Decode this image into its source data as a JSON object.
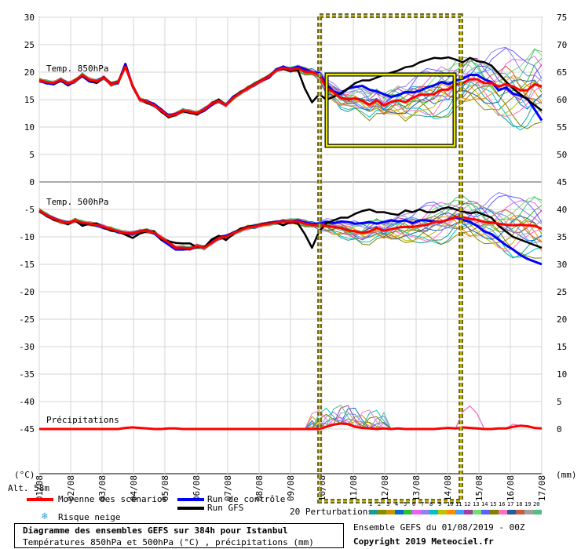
{
  "chart_data": {
    "type": "line",
    "title": "Diagramme des ensembles GEFS sur 384h pour Istanbul",
    "subtitle": "Températures 850hPa et 500hPa (°C) , précipitations (mm)",
    "x_ticks": [
      "01/08",
      "02/08",
      "03/08",
      "04/08",
      "05/08",
      "06/08",
      "07/08",
      "08/08",
      "09/08",
      "10/08",
      "11/08",
      "12/08",
      "13/08",
      "14/08",
      "15/08",
      "16/08",
      "17/08"
    ],
    "left_axis": {
      "unit": "(°C)",
      "ticks": [
        30,
        25,
        20,
        15,
        10,
        5,
        0,
        -5,
        -10,
        -15,
        -20,
        -25,
        -30,
        -35,
        -40,
        -45
      ],
      "ylim": [
        -50,
        31
      ]
    },
    "right_axis": {
      "unit": "(mm)",
      "ticks": [
        75,
        70,
        65,
        60,
        55,
        50,
        45,
        40,
        35,
        30,
        25,
        20,
        15,
        10,
        5,
        0
      ]
    },
    "panels": [
      {
        "label": "Temp. 850hPa",
        "mean_color": "#ff0000"
      },
      {
        "label": "Temp. 500hPa",
        "mean_color": "#ff0000"
      },
      {
        "label": "Précipitations",
        "mean_color": "#ff0000"
      }
    ],
    "series": [
      {
        "name": "Moyenne des scénarios",
        "panel": "t850",
        "color": "#ff0000",
        "values": [
          18.5,
          18.2,
          18.0,
          18.6,
          17.9,
          18.4,
          19.5,
          18.6,
          18.3,
          19.0,
          17.8,
          18.2,
          21.0,
          17.5,
          15.0,
          14.6,
          14.0,
          13.0,
          12.0,
          12.3,
          13.0,
          12.8,
          12.5,
          13.2,
          14.2,
          14.8,
          14.0,
          15.3,
          16.2,
          17.0,
          17.8,
          18.5,
          19.2,
          20.3,
          20.8,
          20.4,
          20.7,
          20.1,
          20.0,
          19.5,
          17.2,
          16.3,
          15.3,
          15.0,
          15.2,
          14.8,
          14.1,
          14.9,
          13.9,
          14.6,
          14.9,
          14.5,
          15.3,
          15.9,
          15.9,
          16.0,
          16.8,
          16.8,
          17.7,
          18.0,
          18.7,
          18.7,
          18.0,
          18.0,
          17.4,
          17.8,
          17.4,
          16.7,
          16.7,
          17.8,
          17.4
        ]
      },
      {
        "name": "Run de contrôle",
        "panel": "t850",
        "color": "#0000ff",
        "values": [
          18.5,
          18.0,
          17.8,
          18.5,
          17.6,
          18.4,
          19.3,
          18.3,
          18.1,
          19.0,
          17.8,
          18.1,
          21.5,
          17.4,
          15.0,
          14.7,
          14.2,
          13.2,
          12.1,
          12.4,
          13.0,
          12.6,
          12.4,
          13.0,
          14.0,
          14.8,
          14.0,
          15.5,
          16.3,
          17.0,
          17.8,
          18.5,
          19.0,
          20.5,
          21.0,
          20.5,
          21.0,
          20.5,
          20.0,
          19.8,
          17.8,
          16.5,
          16.0,
          17.0,
          17.3,
          17.5,
          16.8,
          16.5,
          16.0,
          15.5,
          15.8,
          16.4,
          16.3,
          16.6,
          17.2,
          17.6,
          18.2,
          17.8,
          18.5,
          18.8,
          19.5,
          19.5,
          18.7,
          18.2,
          16.7,
          17.2,
          16.1,
          15.7,
          15.2,
          13.2,
          11.2
        ]
      },
      {
        "name": "Run GFS",
        "panel": "t850",
        "color": "#000000",
        "values": [
          18.5,
          18.2,
          17.9,
          18.5,
          17.8,
          18.5,
          19.4,
          18.5,
          18.0,
          19.1,
          17.9,
          18.3,
          21.2,
          17.6,
          15.1,
          14.4,
          14.0,
          12.8,
          11.8,
          12.2,
          12.9,
          12.6,
          12.3,
          13.2,
          14.3,
          15.0,
          14.0,
          15.4,
          16.3,
          17.1,
          17.9,
          18.6,
          19.3,
          20.3,
          20.6,
          20.2,
          20.5,
          17.0,
          14.5,
          16.0,
          15.0,
          15.5,
          16.2,
          17.0,
          18.0,
          18.5,
          18.5,
          19.0,
          19.5,
          19.9,
          20.3,
          20.9,
          21.1,
          21.8,
          22.2,
          22.6,
          22.5,
          22.7,
          22.3,
          21.8,
          22.6,
          22.0,
          21.8,
          21.2,
          19.8,
          18.3,
          17.0,
          16.0,
          15.0,
          14.0,
          13.0
        ]
      },
      {
        "name": "Moyenne des scénarios",
        "panel": "t500",
        "color": "#ff0000",
        "values": [
          -5.2,
          -6.0,
          -6.7,
          -7.2,
          -7.5,
          -7.0,
          -7.4,
          -7.6,
          -7.8,
          -8.2,
          -8.6,
          -9.0,
          -9.3,
          -9.4,
          -9.0,
          -8.9,
          -9.2,
          -10.2,
          -11.0,
          -12.0,
          -12.0,
          -12.1,
          -11.7,
          -12.0,
          -11.1,
          -10.2,
          -10.0,
          -9.4,
          -8.8,
          -8.3,
          -8.1,
          -7.8,
          -7.6,
          -7.4,
          -7.2,
          -7.2,
          -7.2,
          -7.6,
          -7.8,
          -7.9,
          -8.0,
          -8.2,
          -8.4,
          -8.8,
          -9.0,
          -9.3,
          -9.0,
          -8.4,
          -8.9,
          -8.6,
          -8.3,
          -8.2,
          -8.2,
          -8.0,
          -7.8,
          -7.3,
          -7.2,
          -6.9,
          -6.4,
          -6.4,
          -6.7,
          -6.9,
          -7.3,
          -7.4,
          -7.6,
          -7.8,
          -7.9,
          -7.8,
          -7.9,
          -8.0,
          -8.5
        ]
      },
      {
        "name": "Run de contrôle",
        "panel": "t500",
        "color": "#0000ff",
        "values": [
          -5.3,
          -6.0,
          -6.6,
          -7.2,
          -7.5,
          -7.0,
          -7.5,
          -7.7,
          -7.9,
          -8.4,
          -8.7,
          -9.1,
          -9.4,
          -9.5,
          -9.0,
          -8.8,
          -9.3,
          -10.5,
          -11.4,
          -12.3,
          -12.3,
          -12.2,
          -11.8,
          -11.9,
          -11.0,
          -10.0,
          -9.8,
          -9.3,
          -8.7,
          -8.2,
          -8.0,
          -7.7,
          -7.5,
          -7.3,
          -7.1,
          -7.2,
          -7.0,
          -7.4,
          -7.6,
          -7.6,
          -7.3,
          -7.5,
          -7.2,
          -7.3,
          -7.6,
          -7.5,
          -7.3,
          -7.6,
          -7.3,
          -7.0,
          -7.2,
          -7.0,
          -7.5,
          -7.0,
          -7.0,
          -7.2,
          -7.3,
          -6.8,
          -6.5,
          -6.9,
          -7.3,
          -8.0,
          -9.0,
          -9.5,
          -10.5,
          -11.5,
          -12.3,
          -13.3,
          -14.0,
          -14.5,
          -15.0
        ]
      },
      {
        "name": "Run GFS",
        "panel": "t500",
        "color": "#000000",
        "values": [
          -5.3,
          -6.1,
          -6.9,
          -7.2,
          -7.7,
          -7.0,
          -8.0,
          -7.6,
          -7.6,
          -8.3,
          -8.9,
          -9.0,
          -9.6,
          -10.2,
          -9.4,
          -9.0,
          -9.0,
          -10.5,
          -10.8,
          -11.1,
          -11.2,
          -11.2,
          -11.9,
          -11.9,
          -10.5,
          -9.8,
          -10.6,
          -9.5,
          -8.5,
          -8.2,
          -8.0,
          -7.7,
          -7.5,
          -7.4,
          -7.9,
          -7.3,
          -7.5,
          -9.5,
          -12.0,
          -9.0,
          -7.5,
          -7.0,
          -6.5,
          -6.5,
          -5.8,
          -5.3,
          -5.0,
          -5.5,
          -5.5,
          -5.8,
          -6.0,
          -5.2,
          -5.5,
          -5.0,
          -5.5,
          -5.5,
          -4.9,
          -4.6,
          -5.0,
          -5.4,
          -5.7,
          -5.5,
          -6.0,
          -6.5,
          -8.0,
          -9.0,
          -10.0,
          -10.5,
          -11.0,
          -11.5,
          -12.0
        ]
      },
      {
        "name": "Moyenne des scénarios",
        "panel": "precip",
        "unit": "mm",
        "color": "#ff0000",
        "values": [
          0,
          0,
          0,
          0,
          0,
          0,
          0,
          0,
          0,
          0,
          0,
          0,
          0.2,
          0.3,
          0.2,
          0.1,
          0,
          0,
          0.1,
          0.1,
          0,
          0,
          0,
          0,
          0,
          0,
          0,
          0,
          0,
          0,
          0,
          0,
          0,
          0,
          0,
          0,
          0,
          0,
          0,
          0,
          0.4,
          0.8,
          1.0,
          0.9,
          0.4,
          0.2,
          0.1,
          0,
          0.1,
          0,
          0.1,
          0,
          0,
          0,
          0,
          0,
          0.1,
          0.2,
          0.1,
          0.3,
          0.2,
          0.1,
          0,
          0,
          0.1,
          0.1,
          0.4,
          0.6,
          0.5,
          0.2,
          0.1
        ]
      }
    ],
    "perturbation_count": 20,
    "highlight_boxes": [
      "dashed olive rectangle 10/08 – 14/08",
      "yellow rectangle on Temp. 850hPa 10/08 – 14/08"
    ]
  },
  "labels": {
    "alt": "Alt. 58m",
    "left_unit": "(°C)",
    "right_unit": "(mm)",
    "panel_850": "Temp. 850hPa",
    "panel_500": "Temp. 500hPa",
    "panel_precip": "Précipitations"
  },
  "legend": {
    "mean": "Moyenne des scénarios",
    "control": "Run de contrôle",
    "gfs": "Run GFS",
    "snow": "Risque neige",
    "perturbations": "20 Perturbations",
    "pert_numbers": [
      "1",
      "2",
      "3",
      "4",
      "5",
      "6",
      "7",
      "8",
      "9",
      "10",
      "11",
      "12",
      "13",
      "14",
      "15",
      "16",
      "17",
      "18",
      "19",
      "20"
    ]
  },
  "footer": {
    "title": "Diagramme des ensembles GEFS sur 384h pour Istanbul",
    "subtitle": "Températures 850hPa et 500hPa (°C) , précipitations (mm)",
    "run": "Ensemble GEFS du 01/08/2019 - 00Z",
    "copyright": "Copyright 2019 Meteociel.fr"
  },
  "colors": {
    "mean": "#ff0000",
    "control": "#0000ff",
    "gfs": "#000000",
    "grid": "#c8c8c8",
    "frame": "#6b6b26",
    "highlight": "#e8e800",
    "pert": [
      "#1a9a9a",
      "#8a8a00",
      "#c89600",
      "#0a6acf",
      "#30c030",
      "#f060f0",
      "#9080f0",
      "#00c0c0",
      "#c0c000",
      "#ff8c00",
      "#40a0ff",
      "#a040a0",
      "#70e070",
      "#6060ff",
      "#808000",
      "#ff70c0",
      "#2060a0",
      "#c06040",
      "#a0a0a0",
      "#50c080"
    ]
  }
}
